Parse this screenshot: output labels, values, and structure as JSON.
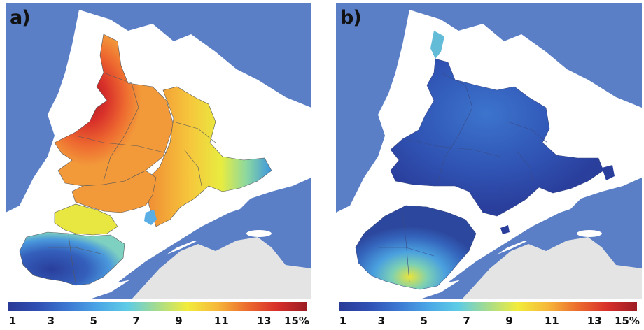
{
  "panels": [
    {
      "id": "a",
      "label": "a)"
    },
    {
      "id": "b",
      "label": "b)"
    }
  ],
  "colorbar": {
    "ticks": [
      "1",
      "3",
      "5",
      "7",
      "9",
      "11",
      "13",
      "15%"
    ],
    "range": [
      1,
      15
    ],
    "gradient": [
      "#2a3a96",
      "#3050b4",
      "#3c78d2",
      "#4aa6e6",
      "#5ecce6",
      "#a6dc8c",
      "#f2ec3c",
      "#f6b83a",
      "#ec6c2e",
      "#d8302a",
      "#9c1c24"
    ]
  },
  "map_colors": {
    "water": "#5b7fc6",
    "land_outside": "#ffffff",
    "land_grey": "#e4e4e4",
    "subbasin_lines": "#55575a"
  }
}
